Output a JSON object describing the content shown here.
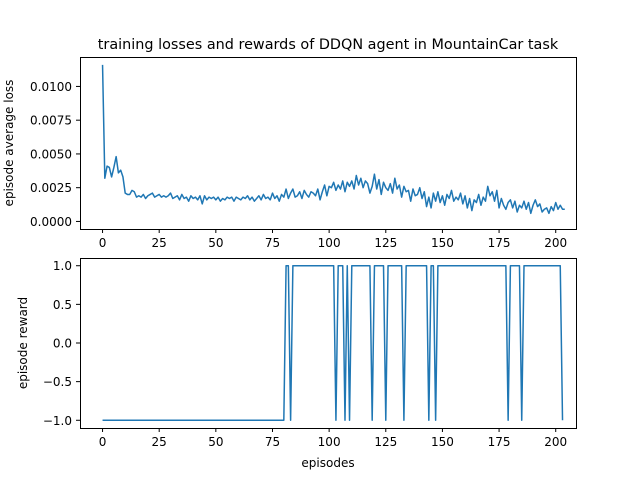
{
  "figure_title": "training losses and rewards of DDQN agent in MountainCar task",
  "chart_data": [
    {
      "type": "line",
      "title": "training losses and rewards of DDQN agent in MountainCar task",
      "xlabel": "",
      "ylabel": "episode average loss",
      "xlim": [
        -9.95,
        208.95
      ],
      "ylim": [
        -0.00056,
        0.01218
      ],
      "xticks": [
        0,
        25,
        50,
        75,
        100,
        125,
        150,
        175,
        200
      ],
      "xticklabels": [
        "0",
        "25",
        "50",
        "75",
        "100",
        "125",
        "150",
        "175",
        "200"
      ],
      "yticks": [
        0.0,
        0.0025,
        0.005,
        0.0075,
        0.01
      ],
      "yticklabels": [
        "0.0000",
        "0.0025",
        "0.0050",
        "0.0075",
        "0.0100"
      ],
      "grid": false,
      "color": "#1f77b4",
      "series": [
        {
          "x_start": 0,
          "x_step": 1,
          "values": [
            0.0116,
            0.0032,
            0.0041,
            0.004,
            0.0033,
            0.004,
            0.0048,
            0.0036,
            0.0038,
            0.0033,
            0.0021,
            0.002,
            0.002,
            0.0023,
            0.0022,
            0.0018,
            0.0019,
            0.0018,
            0.002,
            0.0017,
            0.0019,
            0.002,
            0.0021,
            0.0018,
            0.0019,
            0.002,
            0.0018,
            0.0019,
            0.0018,
            0.0019,
            0.0021,
            0.0017,
            0.0018,
            0.0019,
            0.0016,
            0.002,
            0.0017,
            0.0018,
            0.0015,
            0.0019,
            0.0017,
            0.0018,
            0.0016,
            0.0019,
            0.0013,
            0.0019,
            0.0016,
            0.0018,
            0.0017,
            0.0018,
            0.0016,
            0.0018,
            0.0015,
            0.0017,
            0.0016,
            0.0018,
            0.0017,
            0.0018,
            0.0015,
            0.0018,
            0.0017,
            0.0016,
            0.0018,
            0.0017,
            0.0019,
            0.0016,
            0.0018,
            0.0015,
            0.0017,
            0.0019,
            0.0016,
            0.002,
            0.0017,
            0.0018,
            0.0016,
            0.0021,
            0.0017,
            0.0019,
            0.0015,
            0.002,
            0.0018,
            0.0024,
            0.0017,
            0.0021,
            0.0024,
            0.0018,
            0.0019,
            0.0022,
            0.0017,
            0.0023,
            0.002,
            0.0018,
            0.0022,
            0.0021,
            0.0019,
            0.0024,
            0.0016,
            0.0022,
            0.0027,
            0.0019,
            0.0026,
            0.0025,
            0.0029,
            0.0023,
            0.0027,
            0.0024,
            0.003,
            0.0022,
            0.0029,
            0.0026,
            0.003,
            0.0024,
            0.0034,
            0.0027,
            0.0032,
            0.0025,
            0.003,
            0.0028,
            0.0021,
            0.0026,
            0.0035,
            0.0024,
            0.0031,
            0.002,
            0.0029,
            0.0025,
            0.0023,
            0.0028,
            0.0021,
            0.0032,
            0.0024,
            0.0027,
            0.0018,
            0.0026,
            0.0022,
            0.0023,
            0.0015,
            0.0024,
            0.0019,
            0.002,
            0.0025,
            0.0017,
            0.0022,
            0.0011,
            0.0018,
            0.001,
            0.0021,
            0.0015,
            0.0022,
            0.0014,
            0.0019,
            0.0012,
            0.002,
            0.0017,
            0.0023,
            0.0015,
            0.0018,
            0.0016,
            0.0021,
            0.0013,
            0.0019,
            0.001,
            0.0017,
            0.0008,
            0.0016,
            0.0014,
            0.002,
            0.0012,
            0.0018,
            0.0015,
            0.0026,
            0.0019,
            0.0022,
            0.0015,
            0.0023,
            0.001,
            0.0017,
            0.0012,
            0.0009,
            0.0014,
            0.0016,
            0.001,
            0.0015,
            0.0007,
            0.0012,
            0.001,
            0.0015,
            0.0009,
            0.0014,
            0.0006,
            0.0012,
            0.0016,
            0.0011,
            0.0013,
            0.0007,
            0.0009,
            0.001,
            0.0006,
            0.0011,
            0.0008,
            0.0014,
            0.0009,
            0.0012,
            0.0009,
            0.0009
          ]
        }
      ]
    },
    {
      "type": "line",
      "title": "",
      "xlabel": "episodes",
      "ylabel": "episode reward",
      "xlim": [
        -9.95,
        208.95
      ],
      "ylim": [
        -1.1,
        1.1
      ],
      "xticks": [
        0,
        25,
        50,
        75,
        100,
        125,
        150,
        175,
        200
      ],
      "xticklabels": [
        "0",
        "25",
        "50",
        "75",
        "100",
        "125",
        "150",
        "175",
        "200"
      ],
      "yticks": [
        -1.0,
        -0.5,
        0.0,
        0.5,
        1.0
      ],
      "yticklabels": [
        "−1.0",
        "−0.5",
        "0.0",
        "0.5",
        "1.0"
      ],
      "grid": false,
      "color": "#1f77b4",
      "series": [
        {
          "x_start": 0,
          "x_step": 1,
          "values": [
            -1,
            -1,
            -1,
            -1,
            -1,
            -1,
            -1,
            -1,
            -1,
            -1,
            -1,
            -1,
            -1,
            -1,
            -1,
            -1,
            -1,
            -1,
            -1,
            -1,
            -1,
            -1,
            -1,
            -1,
            -1,
            -1,
            -1,
            -1,
            -1,
            -1,
            -1,
            -1,
            -1,
            -1,
            -1,
            -1,
            -1,
            -1,
            -1,
            -1,
            -1,
            -1,
            -1,
            -1,
            -1,
            -1,
            -1,
            -1,
            -1,
            -1,
            -1,
            -1,
            -1,
            -1,
            -1,
            -1,
            -1,
            -1,
            -1,
            -1,
            -1,
            -1,
            -1,
            -1,
            -1,
            -1,
            -1,
            -1,
            -1,
            -1,
            -1,
            -1,
            -1,
            -1,
            -1,
            -1,
            -1,
            -1,
            -1,
            -1,
            -1,
            1,
            1,
            -1,
            1,
            1,
            1,
            1,
            1,
            1,
            1,
            1,
            1,
            1,
            1,
            1,
            1,
            1,
            1,
            1,
            1,
            1,
            1,
            -1,
            1,
            1,
            1,
            -1,
            1,
            -1,
            1,
            1,
            1,
            1,
            1,
            1,
            1,
            1,
            1,
            -1,
            1,
            1,
            1,
            1,
            1,
            -1,
            1,
            1,
            1,
            1,
            1,
            1,
            1,
            -1,
            1,
            1,
            1,
            1,
            1,
            1,
            1,
            1,
            1,
            1,
            -1,
            1,
            1,
            -1,
            1,
            1,
            1,
            1,
            1,
            1,
            1,
            1,
            1,
            1,
            1,
            1,
            1,
            1,
            1,
            1,
            1,
            1,
            1,
            1,
            1,
            1,
            1,
            1,
            1,
            1,
            1,
            1,
            1,
            1,
            1,
            -1,
            1,
            1,
            1,
            1,
            1,
            -1,
            1,
            1,
            1,
            1,
            1,
            1,
            1,
            1,
            1,
            1,
            1,
            1,
            1,
            1,
            1,
            1,
            1,
            -1
          ]
        }
      ]
    }
  ]
}
